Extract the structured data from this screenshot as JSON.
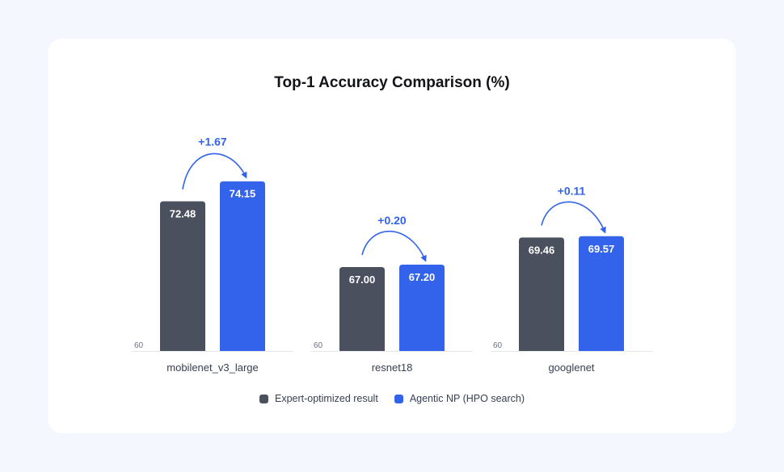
{
  "chart_data": {
    "type": "bar",
    "title": "Top-1 Accuracy Comparison (%)",
    "categories": [
      "mobilenet_v3_large",
      "resnet18",
      "googlenet"
    ],
    "series": [
      {
        "name": "Expert-optimized result",
        "values": [
          72.48,
          67.0,
          69.46
        ],
        "labels": [
          "72.48",
          "67.00",
          "69.46"
        ],
        "color": "#4a505d"
      },
      {
        "name": "Agentic NP (HPO search)",
        "values": [
          74.15,
          67.2,
          69.57
        ],
        "labels": [
          "74.15",
          "67.20",
          "69.57"
        ],
        "color": "#3263ea"
      }
    ],
    "deltas": [
      "+1.67",
      "+0.20",
      "+0.11"
    ],
    "baseline_tick": "60",
    "ylim": [
      60,
      76
    ],
    "legend_position": "bottom",
    "grid": false
  }
}
